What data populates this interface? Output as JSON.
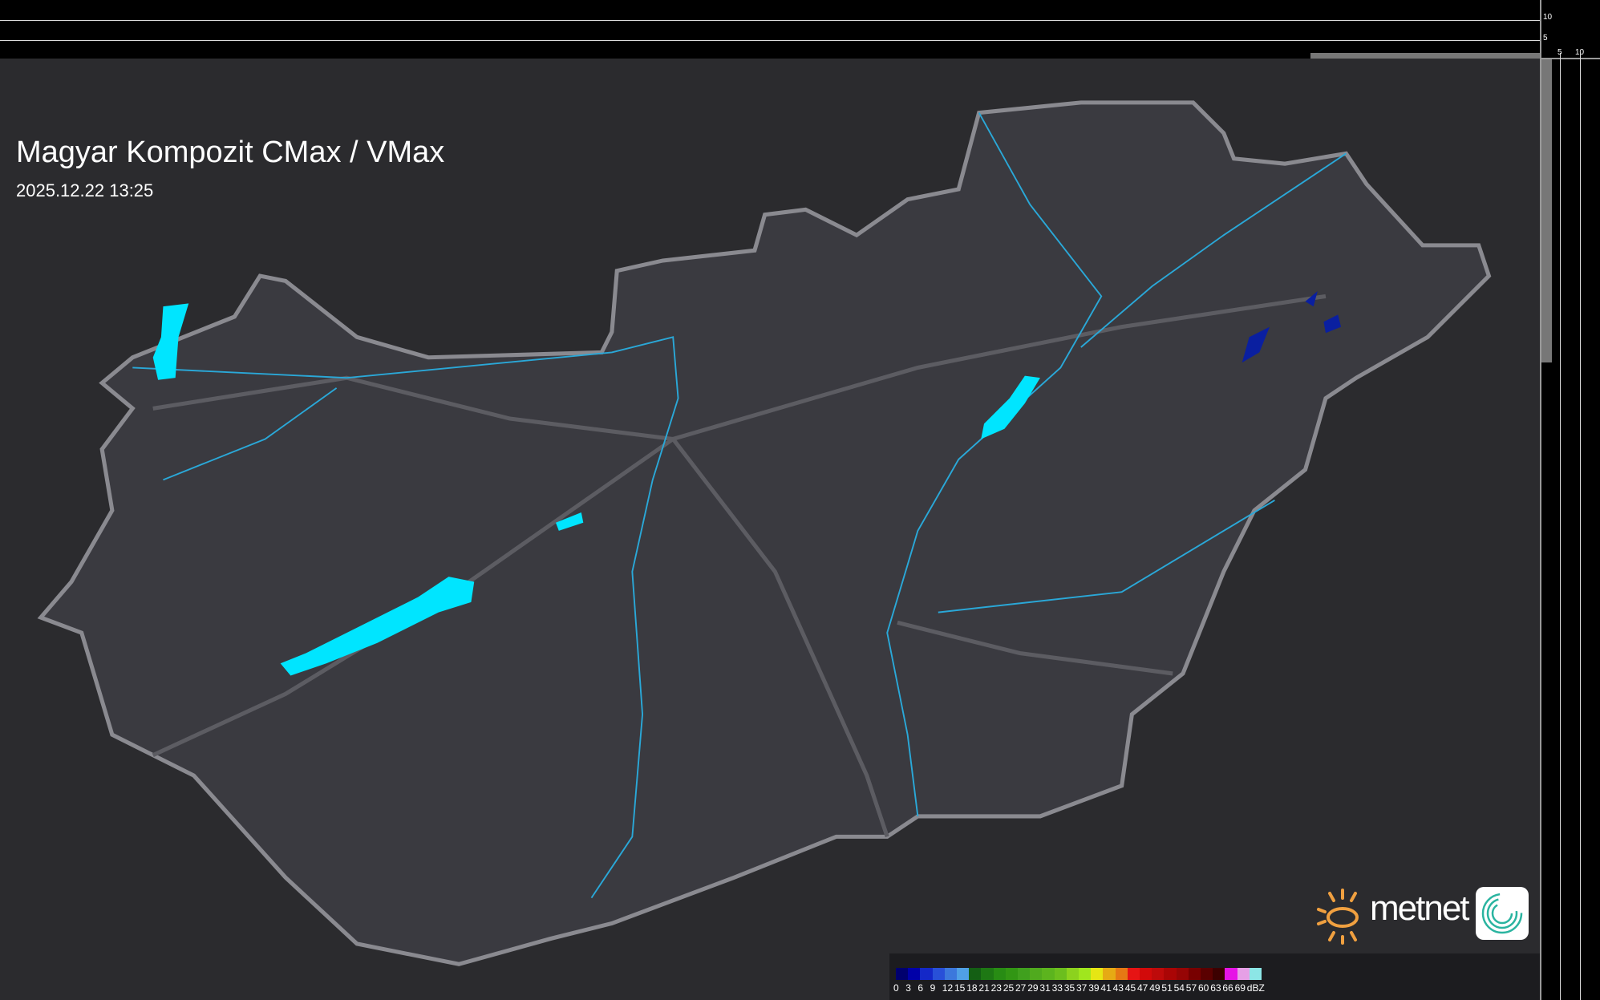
{
  "title": "Magyar Kompozit CMax / VMax",
  "timestamp": "2025.12.22 13:25",
  "profile_axis": {
    "vertical_ticks": [
      "10",
      "5"
    ],
    "horizontal_ticks": [
      "5",
      "10"
    ]
  },
  "legend": {
    "unit": "dBZ",
    "labels": [
      "0",
      "3",
      "6",
      "9",
      "12",
      "15",
      "18",
      "21",
      "23",
      "25",
      "27",
      "29",
      "31",
      "33",
      "35",
      "37",
      "39",
      "41",
      "43",
      "45",
      "47",
      "49",
      "51",
      "54",
      "57",
      "60",
      "63",
      "66",
      "69"
    ],
    "colors": [
      "#00006e",
      "#0000a8",
      "#1428c8",
      "#2850d8",
      "#3c78dc",
      "#50a0e6",
      "#145f14",
      "#1e7814",
      "#288c14",
      "#329614",
      "#40a01e",
      "#50aa1e",
      "#5cb41e",
      "#6cbe1e",
      "#8cd21e",
      "#a0e61e",
      "#e6e614",
      "#e6aa14",
      "#e67814",
      "#e61414",
      "#d20a0a",
      "#be0a0a",
      "#aa0505",
      "#960505",
      "#780000",
      "#5a0000",
      "#3c0000",
      "#e614e6",
      "#e6a0e6",
      "#8ce6e6"
    ]
  },
  "logo": {
    "brand": "metnet",
    "sun_color": "#f0a040",
    "app_icon": "swirl-icon"
  },
  "colors": {
    "water": "#00e5ff",
    "rivers": "#2aa8d8",
    "border": "#8a8a90",
    "echo": "#0a1fa0"
  }
}
